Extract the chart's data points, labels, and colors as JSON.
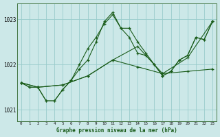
{
  "title": "Graphe pression niveau de la mer (hPa)",
  "background_color": "#cce8e8",
  "grid_color": "#99cccc",
  "line_color": "#1a5c1a",
  "xlim": [
    -0.5,
    23.5
  ],
  "ylim": [
    1020.75,
    1023.35
  ],
  "yticks": [
    1021,
    1022,
    1023
  ],
  "xtick_labels": [
    "0",
    "1",
    "2",
    "3",
    "4",
    "5",
    "6",
    "7",
    "8",
    "9",
    "10",
    "11",
    "12",
    "13",
    "14",
    "15",
    "16",
    "17",
    "18",
    "19",
    "20",
    "21",
    "22",
    "23"
  ],
  "series": [
    {
      "x": [
        0,
        1,
        2,
        3,
        4,
        5,
        6,
        7,
        8,
        9,
        10,
        11,
        12,
        13,
        14,
        15,
        16,
        17,
        18,
        19,
        20,
        21,
        22,
        23
      ],
      "y": [
        1021.6,
        1021.5,
        1021.5,
        1021.2,
        1021.2,
        1021.45,
        1021.65,
        1021.9,
        1022.1,
        1022.5,
        1022.95,
        1023.15,
        1022.8,
        1022.8,
        1022.5,
        1022.25,
        1022.0,
        1021.75,
        1021.85,
        1022.1,
        1022.2,
        1022.6,
        1022.55,
        1022.95
      ]
    },
    {
      "x": [
        0,
        1,
        2,
        3,
        4,
        5,
        6,
        7,
        8,
        9,
        10,
        11,
        12,
        13,
        14,
        15,
        16,
        17,
        18,
        19,
        20,
        21,
        22,
        23
      ],
      "y": [
        1021.6,
        1021.5,
        1021.5,
        1021.2,
        1021.2,
        1021.45,
        1021.65,
        1022.0,
        1022.35,
        1022.6,
        1022.9,
        1023.1,
        1022.8,
        1022.6,
        1022.25,
        1022.2,
        1022.0,
        1021.75,
        1021.85,
        1022.1,
        1022.2,
        1022.6,
        1022.55,
        1022.95
      ]
    },
    {
      "x": [
        0,
        2,
        5,
        8,
        11,
        14,
        17,
        20,
        23
      ],
      "y": [
        1021.6,
        1021.5,
        1021.55,
        1021.75,
        1022.1,
        1022.4,
        1021.8,
        1022.15,
        1022.95
      ]
    },
    {
      "x": [
        0,
        2,
        5,
        8,
        11,
        14,
        17,
        20,
        23
      ],
      "y": [
        1021.6,
        1021.5,
        1021.55,
        1021.75,
        1022.1,
        1021.95,
        1021.8,
        1021.85,
        1021.9
      ]
    }
  ]
}
